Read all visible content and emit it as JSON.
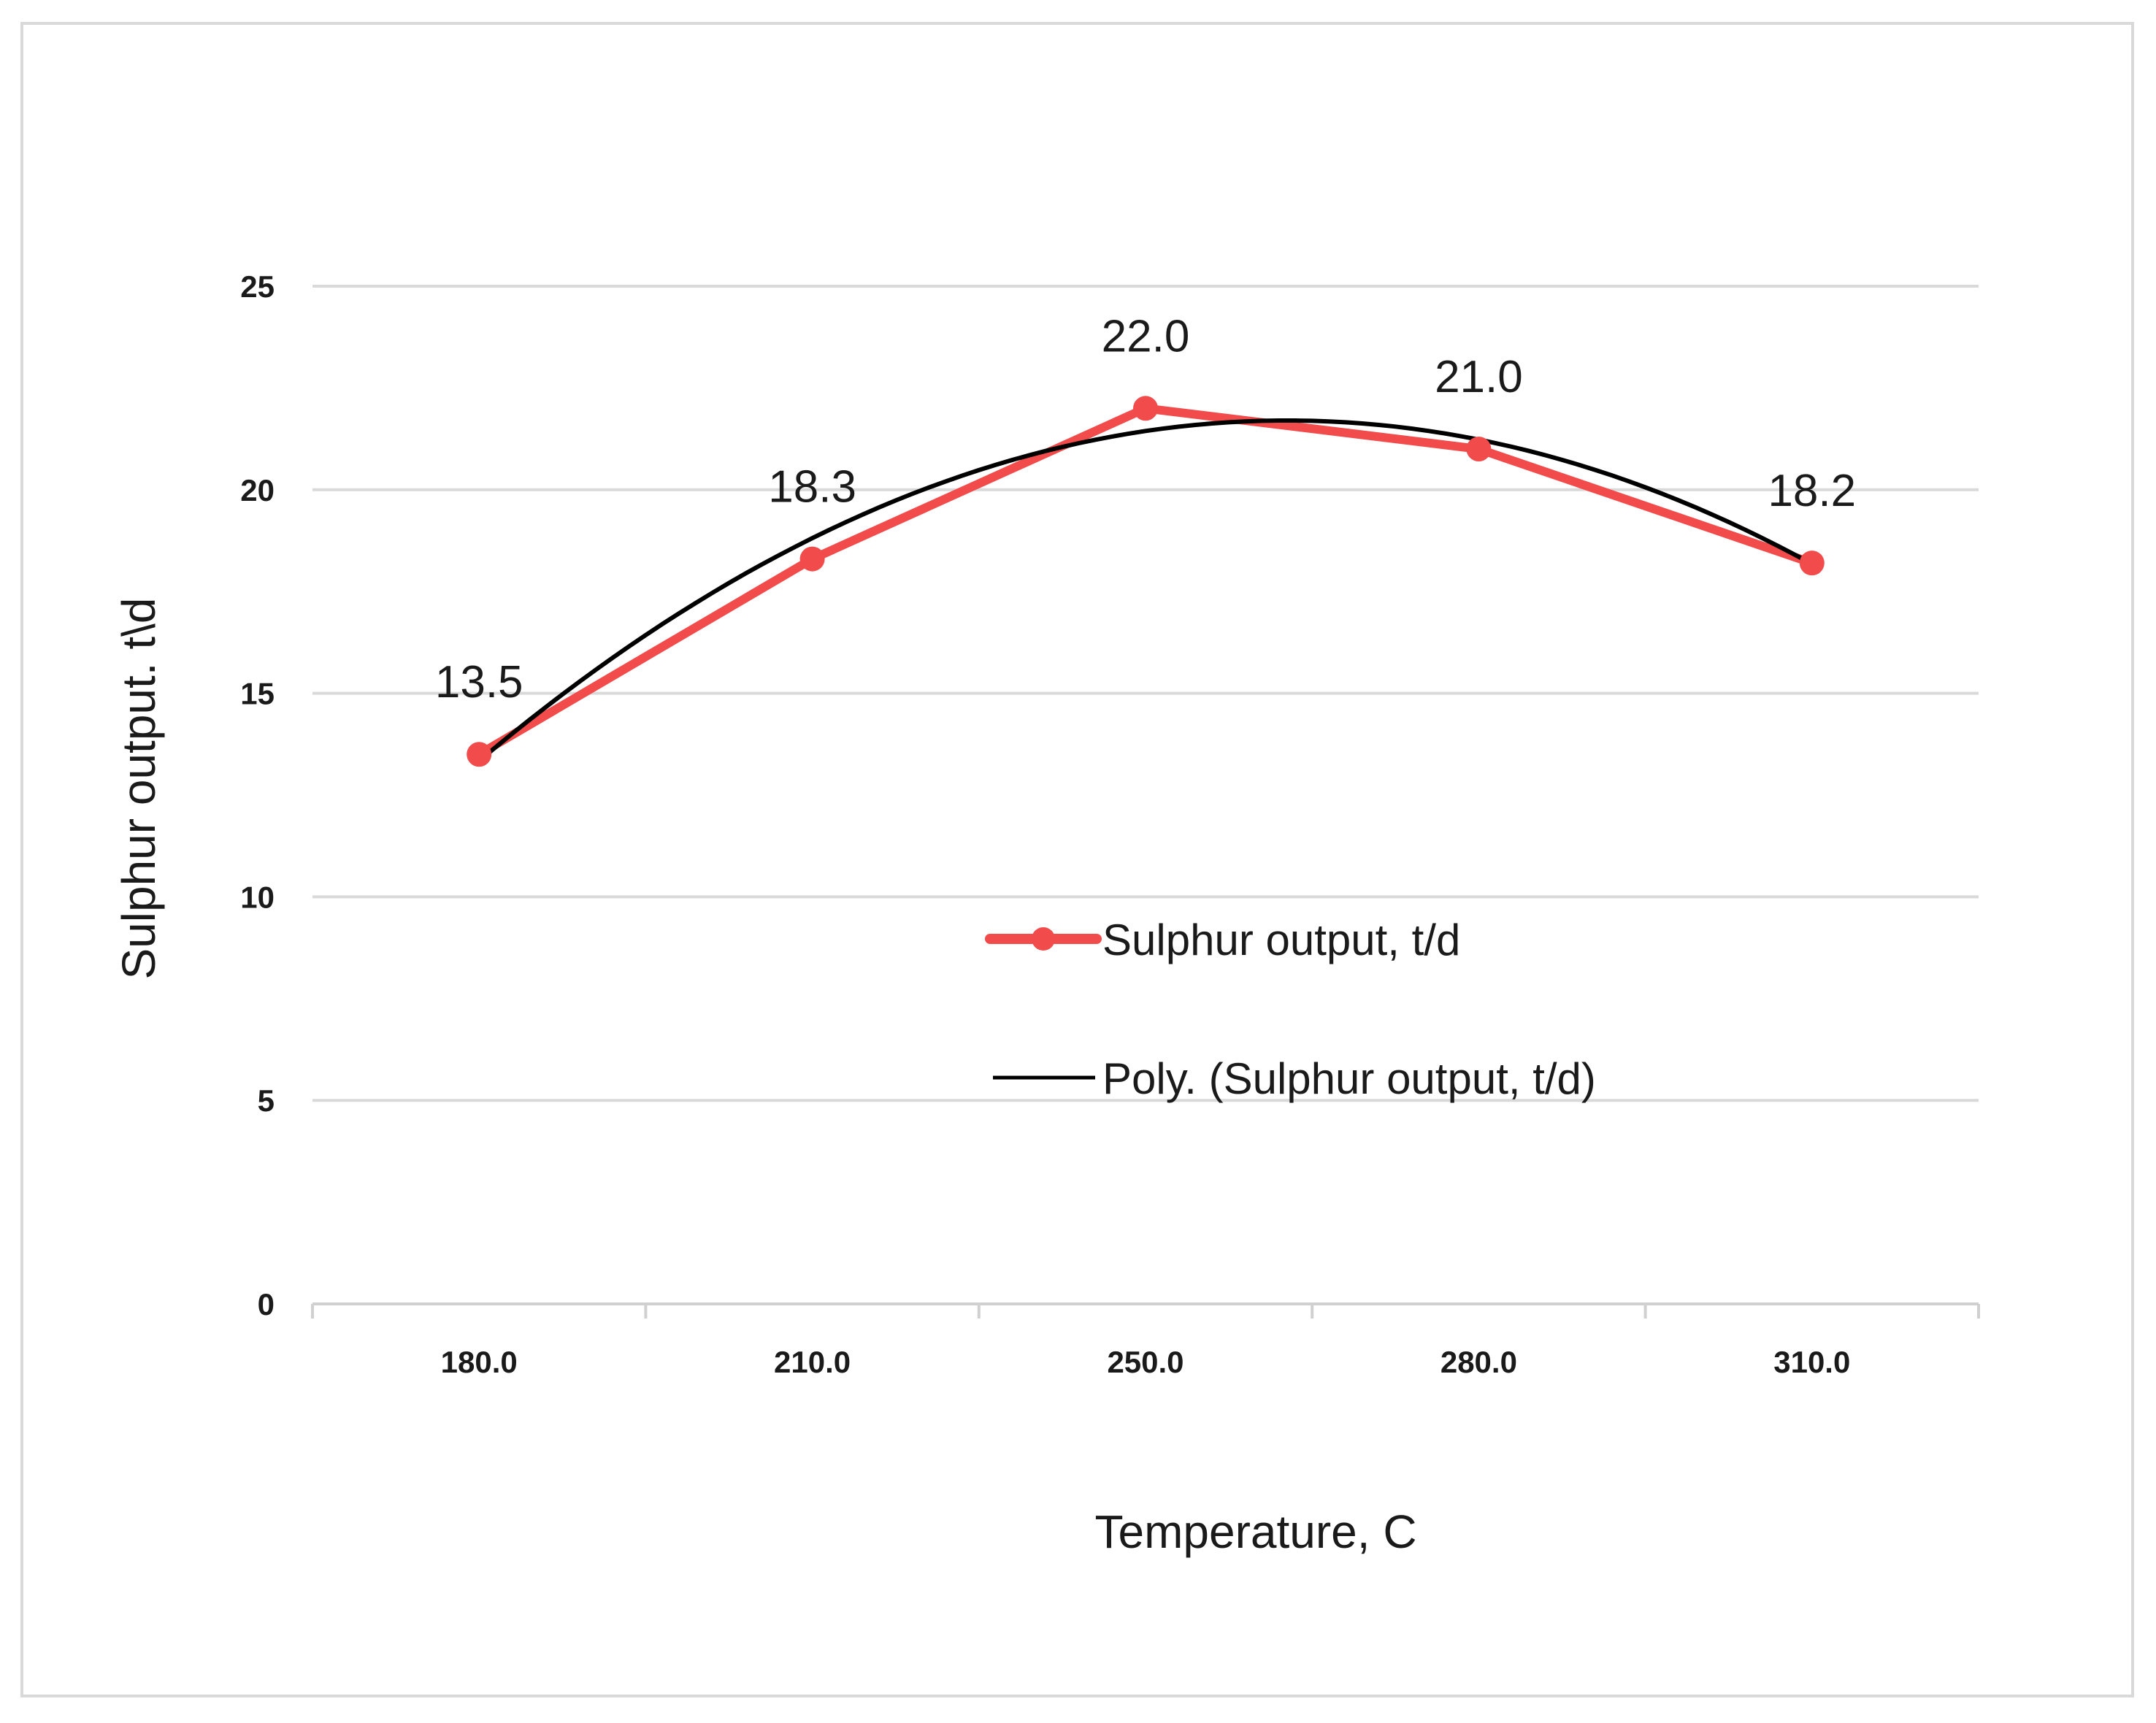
{
  "chart_data": {
    "type": "line",
    "title": "",
    "xlabel": "Temperature,  C",
    "ylabel": "Sulphur output. t\\d",
    "categories": [
      "180.0",
      "210.0",
      "250.0",
      "280.0",
      "310.0"
    ],
    "series": [
      {
        "name": "Sulphur output,  t/d",
        "values": [
          13.5,
          18.3,
          22.0,
          21.0,
          18.2
        ],
        "data_labels": [
          "13.5",
          "18.3",
          "22.0",
          "21.0",
          "18.2"
        ],
        "color": "#f24b4b",
        "marker": "circle"
      },
      {
        "name": "Poly. (Sulphur output,  t/d)",
        "type": "trendline",
        "fit": "polynomial",
        "source_series": "Sulphur output,  t/d",
        "color": "#000000"
      }
    ],
    "ylim": [
      0,
      25
    ],
    "yticks": [
      "0",
      "5",
      "10",
      "15",
      "20",
      "25"
    ],
    "ytick_values": [
      0,
      5,
      10,
      15,
      20,
      25
    ],
    "grid": true,
    "legend_position": "center-right"
  }
}
